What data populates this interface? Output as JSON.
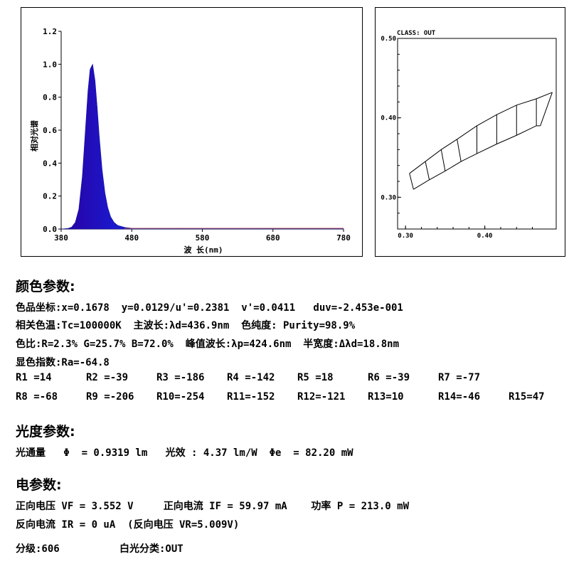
{
  "chart_data": [
    {
      "type": "area",
      "title": "",
      "xlabel": "波 长(nm)",
      "ylabel": "相对光谱",
      "xlim": [
        380,
        780
      ],
      "ylim": [
        0,
        1.2
      ],
      "xticks": [
        "380",
        "480",
        "580",
        "680",
        "780"
      ],
      "yticks": [
        "0.0",
        "0.2",
        "0.4",
        "0.6",
        "0.8",
        "1.0",
        "1.2"
      ],
      "peak_wavelength": 424.6,
      "half_width": 18.8,
      "grid": false,
      "series": [
        {
          "x": [
            380,
            390,
            395,
            400,
            405,
            410,
            414,
            418,
            421,
            424.6,
            428,
            431,
            434,
            438,
            442,
            446,
            450,
            455,
            460,
            470,
            480,
            500,
            550,
            600,
            650,
            700,
            780
          ],
          "y": [
            0,
            0.004,
            0.012,
            0.04,
            0.12,
            0.32,
            0.58,
            0.84,
            0.97,
            1.0,
            0.9,
            0.74,
            0.56,
            0.36,
            0.22,
            0.13,
            0.075,
            0.04,
            0.022,
            0.01,
            0.005,
            0.003,
            0.003,
            0.003,
            0.003,
            0.002,
            0.001
          ]
        }
      ]
    },
    {
      "type": "diagram",
      "title": "CLASS: OUT",
      "xlim": [
        0.29,
        0.49
      ],
      "ylim": [
        0.26,
        0.5
      ],
      "xticks": [
        "0.30",
        "0.40"
      ],
      "yticks": [
        "0.30",
        "0.40",
        "0.50"
      ],
      "bins_top": [
        [
          0.305,
          0.33
        ],
        [
          0.325,
          0.345
        ],
        [
          0.345,
          0.36
        ],
        [
          0.365,
          0.373
        ],
        [
          0.39,
          0.39
        ],
        [
          0.415,
          0.404
        ],
        [
          0.44,
          0.416
        ],
        [
          0.465,
          0.424
        ],
        [
          0.485,
          0.432
        ]
      ],
      "bins_bottom": [
        [
          0.31,
          0.31
        ],
        [
          0.33,
          0.322
        ],
        [
          0.35,
          0.333
        ],
        [
          0.37,
          0.345
        ],
        [
          0.39,
          0.355
        ],
        [
          0.415,
          0.367
        ],
        [
          0.44,
          0.378
        ],
        [
          0.465,
          0.39
        ],
        [
          0.47,
          0.39
        ]
      ]
    }
  ],
  "sections": {
    "color": "颜色参数:",
    "photo": "光度参数:",
    "elec": "电参数:"
  },
  "lines": {
    "coords": "色品坐标:x=0.1678  y=0.0129/u'=0.2381  v'=0.0411   duv=-2.453e-001",
    "cct": "相关色温:Tc=100000K  主波长:λd=436.9nm  色纯度: Purity=98.9%",
    "ratio": "色比:R=2.3% G=25.7% B=72.0%  峰值波长:λp=424.6nm  半宽度:Δλd=18.8nm",
    "cri": "显色指数:Ra=-64.8",
    "flux": "光通量   Φ  = 0.9319 lm   光效 : 4.37 lm/W  Φe  = 82.20 mW",
    "fwd": "正向电压 VF = 3.552 V     正向电流 IF = 59.97 mA    功率 P = 213.0 mW",
    "rev": "反向电流 IR = 0 uA  (反向电压 VR=5.009V)",
    "grade": "分级:606          白光分类:OUT"
  },
  "r_values": [
    [
      "R1 =14",
      "R2 =-39",
      "R3 =-186",
      "R4 =-142",
      "R5 =18",
      "R6 =-39",
      "R7 =-77"
    ],
    [
      "R8 =-68",
      "R9 =-206",
      "R10=-254",
      "R11=-152",
      "R12=-121",
      "R13=10",
      "R14=-46",
      "R15=47"
    ]
  ]
}
